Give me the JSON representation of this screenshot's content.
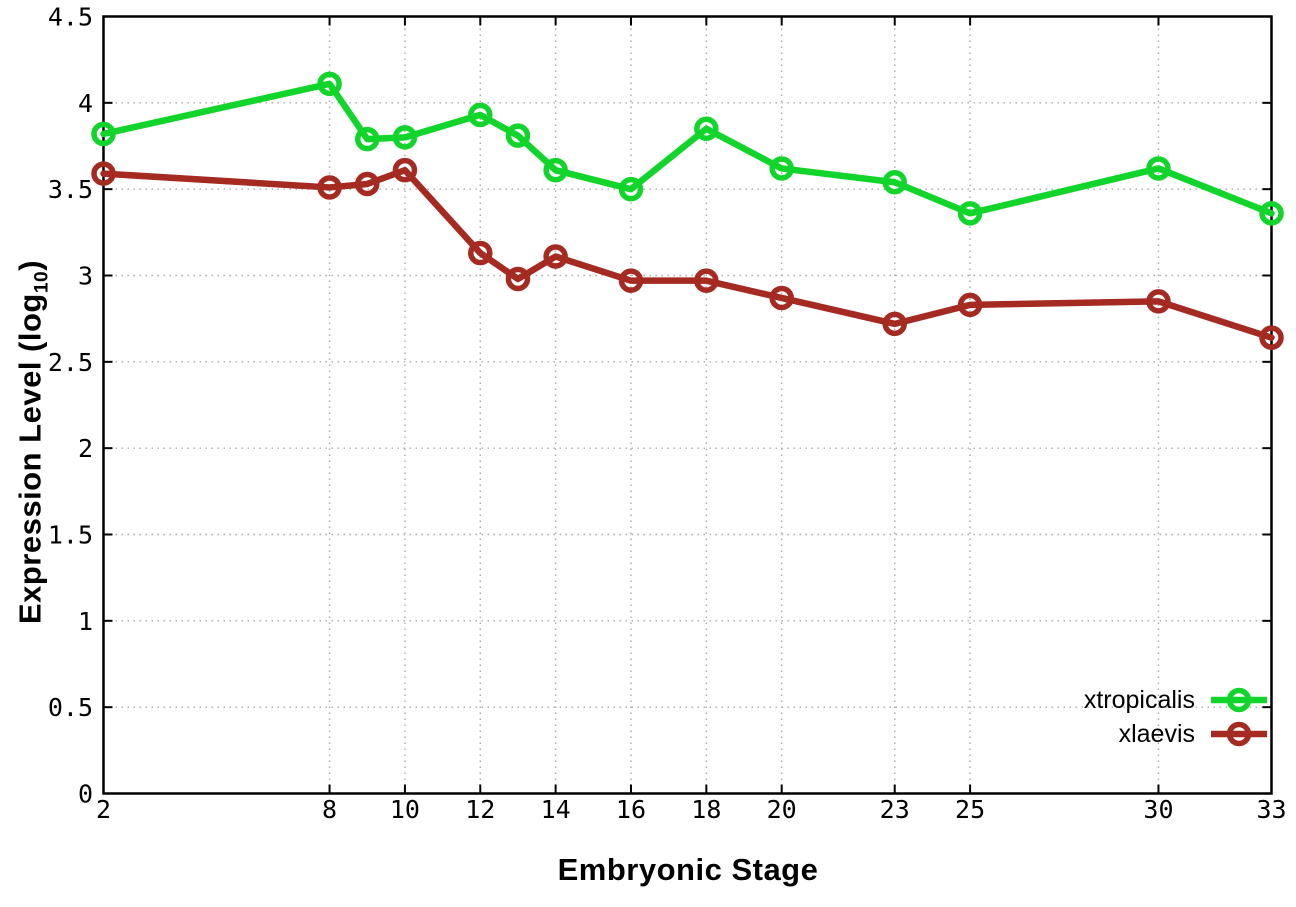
{
  "figure": {
    "background": "#ffffff",
    "xlabel": "Embryonic Stage",
    "ylabel_parts": {
      "main": "Expression Level (log",
      "sub": "10",
      "end": ")"
    }
  },
  "colors": {
    "grid": "#aaaaaa",
    "border": "#000000",
    "text": "#000000",
    "xtropicalis": "#12d52c",
    "xlaevis": "#a42a22"
  },
  "chart_data": {
    "type": "line",
    "title": "",
    "xlabel": "Embryonic Stage",
    "ylabel": "Expression Level (log10)",
    "x": [
      2,
      8,
      9,
      10,
      12,
      13,
      14,
      16,
      18,
      20,
      23,
      25,
      30,
      33
    ],
    "series": [
      {
        "name": "xtropicalis",
        "color": "#12d52c",
        "values": [
          3.82,
          4.11,
          3.79,
          3.8,
          3.93,
          3.81,
          3.61,
          3.5,
          3.85,
          3.62,
          3.54,
          3.36,
          3.62,
          3.36
        ]
      },
      {
        "name": "xlaevis",
        "color": "#a42a22",
        "values": [
          3.59,
          3.51,
          3.53,
          3.61,
          3.13,
          2.98,
          3.11,
          2.97,
          2.97,
          2.87,
          2.72,
          2.83,
          2.85,
          2.64
        ]
      }
    ],
    "xlim": [
      2,
      33
    ],
    "ylim": [
      0,
      4.5
    ],
    "xticks": [
      2,
      8,
      10,
      12,
      14,
      16,
      18,
      20,
      23,
      25,
      30,
      33
    ],
    "xtick_labels": [
      "2",
      "8",
      "10",
      "12",
      "14",
      "16",
      "18",
      "20",
      "23",
      "25",
      "30",
      "33"
    ],
    "yticks": [
      0,
      0.5,
      1,
      1.5,
      2,
      2.5,
      3,
      3.5,
      4,
      4.5
    ],
    "ytick_labels": [
      "0",
      "0.5",
      "1",
      "1.5",
      "2",
      "2.5",
      "3",
      "3.5",
      "4",
      "4.5"
    ],
    "grid": true,
    "marker": "open-circle",
    "legend_position": "bottom-right"
  }
}
